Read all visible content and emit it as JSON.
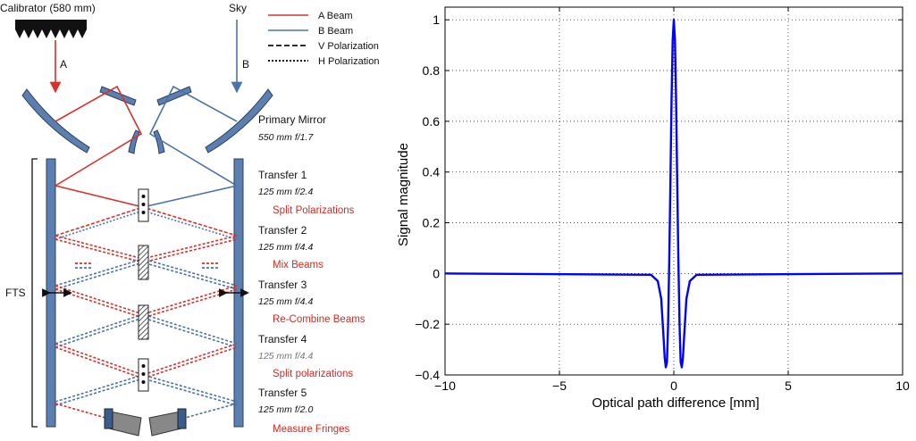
{
  "diagram": {
    "calibrator_label": "Calibrator (580 mm)",
    "sky_label": "Sky",
    "beam_a": "A",
    "beam_b": "B",
    "legend": {
      "a_beam": "A Beam",
      "b_beam": "B Beam",
      "v_pol": "V Polarization",
      "h_pol": "H Polarization"
    },
    "stages": [
      {
        "name": "Primary Mirror",
        "spec": "550 mm f/1.7",
        "action": ""
      },
      {
        "name": "Transfer 1",
        "spec": "125 mm f/2.4",
        "action": "Split Polarizations"
      },
      {
        "name": "Transfer 2",
        "spec": "125 mm f/4.4",
        "action": "Mix Beams"
      },
      {
        "name": "Transfer 3",
        "spec": "125 mm f/4.4",
        "action": "Re-Combine Beams"
      },
      {
        "name": "Transfer 4",
        "spec": "125 mm f/4.4",
        "action": "Split polarizations"
      },
      {
        "name": "Transfer 5",
        "spec": "125 mm f/2.0",
        "action": "Measure Fringes"
      }
    ],
    "fts_label": "FTS",
    "colors": {
      "a_beam": "#d8302a",
      "b_beam": "#4a73a8",
      "mirror": "#5b7fb0"
    }
  },
  "chart_data": {
    "type": "line",
    "title": "",
    "xlabel": "Optical path difference [mm]",
    "ylabel": "Signal magnitude",
    "xlim": [
      -10,
      10
    ],
    "ylim": [
      -0.4,
      1.05
    ],
    "xticks": [
      -10,
      -5,
      0,
      5,
      10
    ],
    "yticks": [
      -0.4,
      -0.2,
      0,
      0.2,
      0.4,
      0.6,
      0.8,
      1
    ],
    "xtick_labels": [
      "−10",
      "−5",
      "0",
      "5",
      "10"
    ],
    "ytick_labels": [
      "−0.4",
      "−0.2",
      "0",
      "0.2",
      "0.4",
      "0.6",
      "0.8",
      "1"
    ],
    "grid": true,
    "series": [
      {
        "color": "#0000ff",
        "x": [
          -10,
          -1.0,
          -0.7,
          -0.55,
          -0.45,
          -0.4,
          -0.35,
          -0.3,
          -0.25,
          -0.2,
          -0.15,
          -0.1,
          -0.05,
          0,
          0.05,
          0.1,
          0.15,
          0.2,
          0.25,
          0.3,
          0.35,
          0.4,
          0.45,
          0.55,
          0.7,
          1.0,
          10
        ],
        "y": [
          0,
          -0.005,
          -0.03,
          -0.1,
          -0.25,
          -0.33,
          -0.37,
          -0.35,
          -0.2,
          0.05,
          0.35,
          0.68,
          0.92,
          1.0,
          0.92,
          0.68,
          0.35,
          0.05,
          -0.2,
          -0.35,
          -0.37,
          -0.33,
          -0.25,
          -0.1,
          -0.03,
          -0.005,
          0
        ]
      }
    ]
  }
}
